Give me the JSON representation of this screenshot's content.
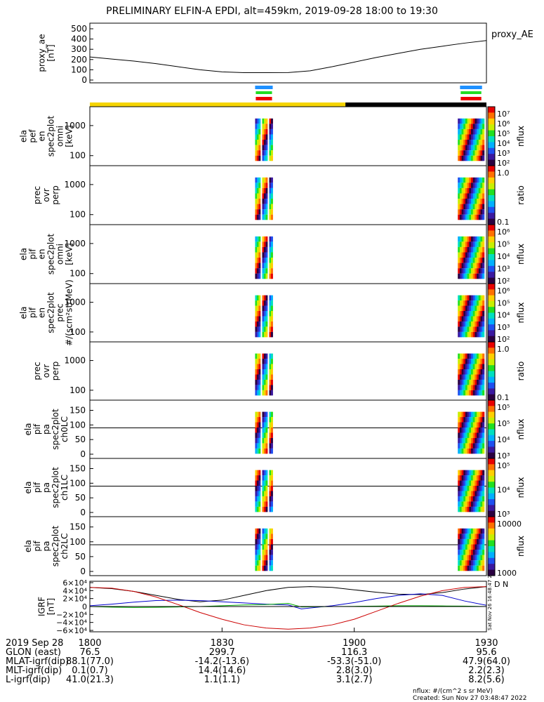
{
  "header": {
    "title": "PRELIMINARY ELFIN-A EPDI, alt=459km, 2019-09-28 18:00 to 19:30"
  },
  "chart_data": [
    {
      "type": "line",
      "panel": "proxy_ae",
      "ylabel_lines": [
        "proxy_ae",
        "[nT]"
      ],
      "yticks": [
        "500",
        "400",
        "300",
        "200",
        "100",
        "0"
      ],
      "ylim": [
        0,
        500
      ],
      "legend": "proxy_AE",
      "series": [
        {
          "name": "proxy_AE",
          "x": [
            0,
            5,
            10,
            15,
            20,
            25,
            30,
            35,
            40,
            45,
            50,
            55,
            60,
            65,
            70,
            75,
            80,
            85,
            90
          ],
          "y": [
            225,
            205,
            185,
            160,
            130,
            100,
            80,
            72,
            72,
            73,
            90,
            130,
            175,
            220,
            260,
            300,
            330,
            360,
            385
          ]
        }
      ]
    },
    {
      "type": "heatmap",
      "panel": "elx_pef_en_spec2plot_omni",
      "ylabel_lines": [
        "ela",
        "pef",
        "en",
        "spec2plot",
        "omni",
        "[keV]"
      ],
      "yticks": [
        "1000",
        "100"
      ],
      "colorbar_label": "nflux",
      "colorbar_ticks": [
        "10⁷",
        "10⁶",
        "10⁵",
        "10⁴",
        "10³",
        "10²"
      ],
      "log_scale": true
    },
    {
      "type": "heatmap",
      "panel": "prec_ovr_perp_1",
      "ylabel_lines": [
        "prec",
        "ovr",
        "perp"
      ],
      "yticks": [
        "1000",
        "100"
      ],
      "colorbar_label": "ratio",
      "colorbar_ticks": [
        "1.0",
        "0.1"
      ],
      "log_scale": true
    },
    {
      "type": "heatmap",
      "panel": "elx_pif_en_spec2plot_omni",
      "ylabel_lines": [
        "ela",
        "pif",
        "en",
        "spec2plot",
        "omni",
        "[keV]"
      ],
      "yticks": [
        "1000",
        "100"
      ],
      "colorbar_label": "nflux",
      "colorbar_ticks": [
        "10⁶",
        "10⁵",
        "10⁴",
        "10³",
        "10²"
      ],
      "log_scale": true
    },
    {
      "type": "heatmap",
      "panel": "elx_pif_en_spec2plot_prec",
      "ylabel_lines": [
        "ela",
        "pif",
        "en",
        "spec2plot",
        "prec",
        "#/(scm²strMeV)"
      ],
      "yticks": [
        "1000",
        "100"
      ],
      "colorbar_label": "nflux",
      "colorbar_ticks": [
        "10⁶",
        "10⁵",
        "10⁴",
        "10³",
        "10²"
      ],
      "log_scale": true
    },
    {
      "type": "heatmap",
      "panel": "prec_ovr_perp_2",
      "ylabel_lines": [
        "prec",
        "ovr",
        "perp"
      ],
      "yticks": [
        "1000",
        "100"
      ],
      "colorbar_label": "ratio",
      "colorbar_ticks": [
        "1.0",
        "0.1"
      ],
      "log_scale": true
    },
    {
      "type": "heatmap",
      "panel": "elx_pif_pa_spec2plot_ch0LC",
      "ylabel_lines": [
        "ela",
        "pif",
        "pa",
        "spec2plot",
        "ch0LC"
      ],
      "yticks": [
        "150",
        "100",
        "50",
        "0"
      ],
      "colorbar_label": "nflux",
      "colorbar_ticks": [
        "10⁵",
        "10⁵",
        "10⁴",
        "10³"
      ]
    },
    {
      "type": "heatmap",
      "panel": "elx_pif_pa_spec2plot_ch1LC",
      "ylabel_lines": [
        "ela",
        "pif",
        "pa",
        "spec2plot",
        "ch1LC"
      ],
      "yticks": [
        "150",
        "100",
        "50",
        "0"
      ],
      "colorbar_label": "nflux",
      "colorbar_ticks": [
        "10⁵",
        "10⁴",
        "10³"
      ]
    },
    {
      "type": "heatmap",
      "panel": "elx_pif_pa_spec2plot_ch2LC",
      "ylabel_lines": [
        "ela",
        "pif",
        "pa",
        "spec2plot",
        "ch2LC"
      ],
      "yticks": [
        "150",
        "100",
        "50",
        "0"
      ],
      "colorbar_label": "nflux",
      "colorbar_ticks": [
        "10000",
        "1000"
      ]
    },
    {
      "type": "line",
      "panel": "igrf",
      "ylabel_lines": [
        "IGRF",
        "[nT]"
      ],
      "yticks": [
        "6×10⁴",
        "4×10⁴",
        "2×10⁴",
        "0",
        "−2×10⁴",
        "−4×10⁴",
        "−6×10⁴"
      ],
      "ylim": [
        -60000,
        60000
      ],
      "series": [
        {
          "color": "#000000",
          "x": [
            0,
            5,
            10,
            15,
            20,
            25,
            30,
            35,
            40,
            45,
            50,
            55,
            60,
            65,
            70,
            75,
            80,
            85,
            90
          ],
          "y": [
            48000,
            45000,
            38000,
            28000,
            18000,
            12000,
            16000,
            28000,
            40000,
            48000,
            50000,
            48000,
            42000,
            36000,
            31000,
            30000,
            35000,
            44000,
            50000
          ]
        },
        {
          "color": "#0000cc",
          "x": [
            0,
            5,
            10,
            15,
            20,
            25,
            30,
            35,
            40,
            45,
            48,
            55,
            60,
            65,
            70,
            75,
            80,
            85,
            90
          ],
          "y": [
            2000,
            6000,
            11000,
            15000,
            16000,
            15000,
            12000,
            9000,
            6000,
            4000,
            -6000,
            2000,
            10000,
            20000,
            28000,
            32000,
            28000,
            14000,
            3000
          ]
        },
        {
          "color": "#00aa00",
          "x": [
            0,
            5,
            10,
            15,
            20,
            25,
            30,
            35,
            40,
            45,
            48,
            55,
            60,
            65,
            70,
            75,
            80,
            85,
            90
          ],
          "y": [
            0,
            -1500,
            -2500,
            -2000,
            -1000,
            0,
            2000,
            4000,
            5000,
            8000,
            -1000,
            0,
            500,
            1000,
            2000,
            2000,
            1500,
            1000,
            0
          ]
        },
        {
          "color": "#cc0000",
          "x": [
            0,
            5,
            10,
            15,
            20,
            25,
            30,
            35,
            40,
            45,
            50,
            55,
            60,
            65,
            70,
            75,
            80,
            85,
            90
          ],
          "y": [
            48000,
            46000,
            38000,
            24000,
            5000,
            -15000,
            -32000,
            -46000,
            -54000,
            -57000,
            -54000,
            -46000,
            -32000,
            -12000,
            8000,
            26000,
            40000,
            48000,
            50000
          ]
        }
      ]
    }
  ],
  "xaxis": {
    "ticks": [
      {
        "label": "1800",
        "minute": 0
      },
      {
        "label": "1830",
        "minute": 30
      },
      {
        "label": "1900",
        "minute": 60
      },
      {
        "label": "1930",
        "minute": 90
      }
    ],
    "rows": [
      {
        "label": "2019 Sep 28",
        "values": [
          "1800",
          "1830",
          "1900",
          "1930"
        ]
      },
      {
        "label": "GLON (east)",
        "values": [
          "76.5",
          "299.7",
          "116.3",
          "95.6"
        ]
      },
      {
        "label": "MLAT-igrf(dip)",
        "values": [
          "88.1(77.0)",
          "-14.2(-13.6)",
          "-53.3(-51.0)",
          "47.9(64.0)"
        ]
      },
      {
        "label": "MLT-igrf(dip)",
        "values": [
          "0.1(0.7)",
          "14.4(14.6)",
          "2.8(3.0)",
          "2.2(2.3)"
        ]
      },
      {
        "label": "L-igrf(dip)",
        "values": [
          "41.0(21.3)",
          "1.1(1.1)",
          "3.1(2.7)",
          "8.2(5.6)"
        ]
      }
    ]
  },
  "side_labels": {
    "timestamp": "Sat Nov 26 16:48:47 2022",
    "letters": "D N"
  },
  "footnotes": {
    "units": "nflux: #/(cm^2 s sr MeV)",
    "created": "Created: Sun Nov 27 03:48:47 2022"
  },
  "colors": {
    "yellow": "#f5d400",
    "blue": "#1e90ff",
    "green": "#22dd22",
    "red": "#ee0000"
  }
}
